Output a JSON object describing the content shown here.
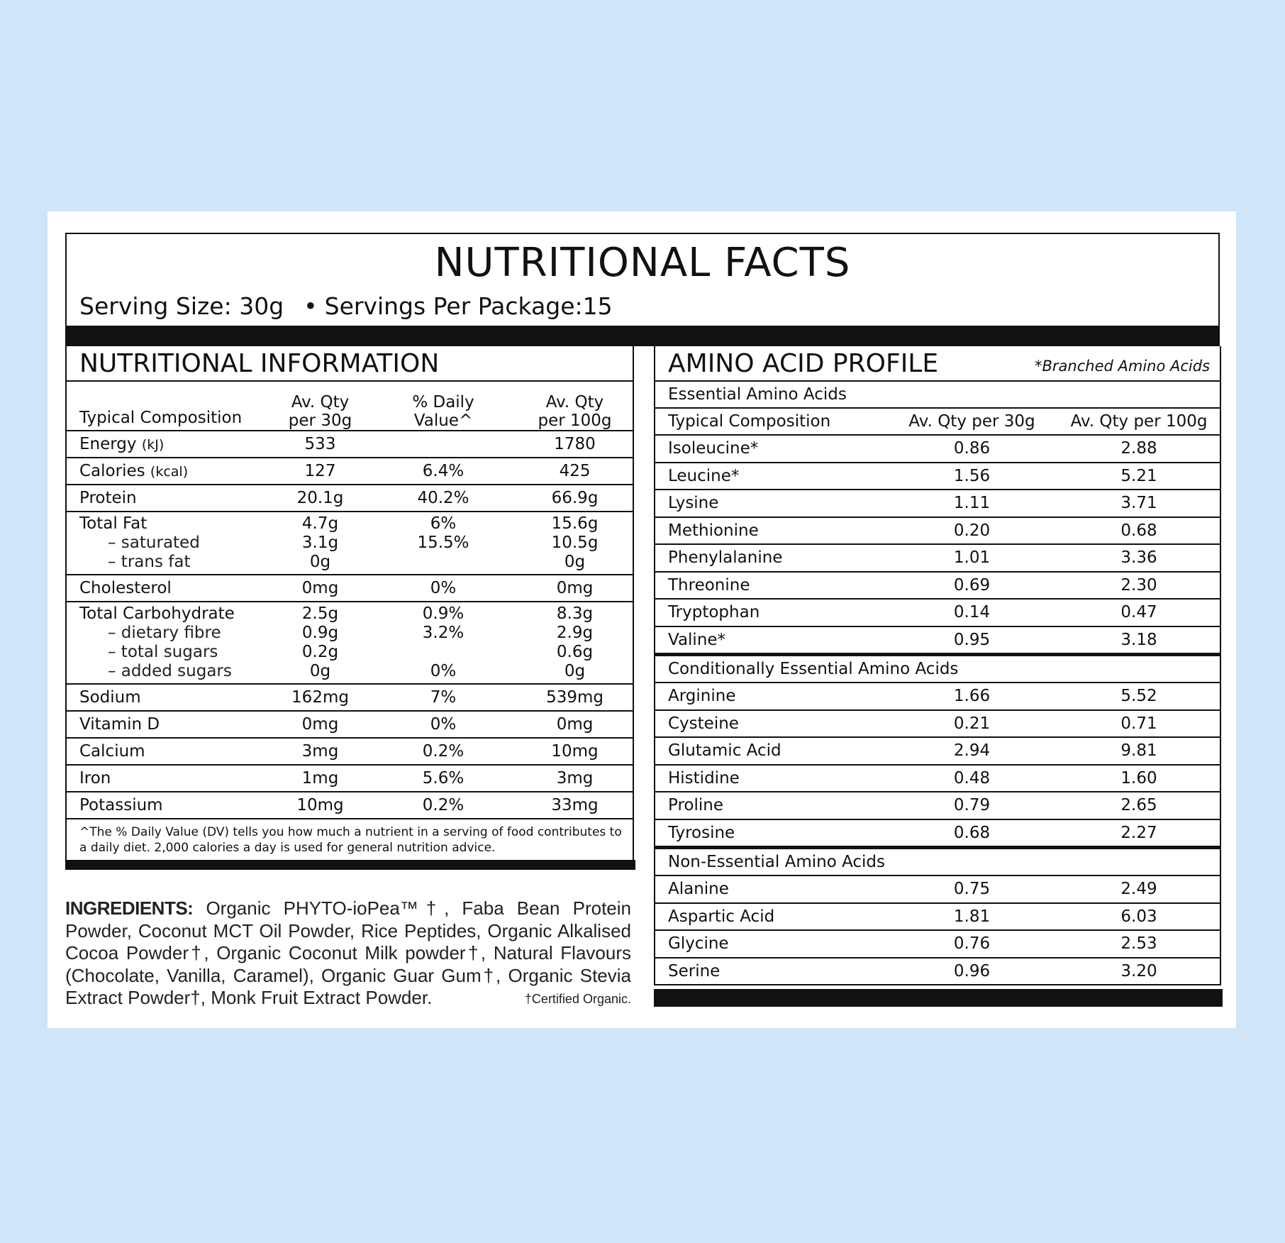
{
  "header": {
    "title": "NUTRITIONAL FACTS",
    "serving_size": "Serving Size: 30g",
    "servings_per_package": "Servings Per Package:15"
  },
  "nutrition": {
    "title": "NUTRITIONAL INFORMATION",
    "columns": [
      "Typical Composition",
      "Av. Qty\nper 30g",
      "% Daily\nValue^",
      "Av. Qty\nper 100g"
    ],
    "groups": [
      {
        "rows": [
          {
            "name": "Energy",
            "unit": "(kJ)",
            "per_serving": "533",
            "daily_value": null,
            "per_100g": "1780"
          }
        ]
      },
      {
        "rows": [
          {
            "name": "Calories",
            "unit": "(kcal)",
            "per_serving": "127",
            "daily_value": "6.4%",
            "per_100g": "425"
          }
        ]
      },
      {
        "rows": [
          {
            "name": "Protein",
            "per_serving": "20.1g",
            "daily_value": "40.2%",
            "per_100g": "66.9g"
          }
        ]
      },
      {
        "rows": [
          {
            "name": "Total Fat",
            "per_serving": "4.7g",
            "daily_value": "6%",
            "per_100g": "15.6g"
          },
          {
            "name": "– saturated",
            "per_serving": "3.1g",
            "daily_value": "15.5%",
            "per_100g": "10.5g"
          },
          {
            "name": "– trans fat",
            "per_serving": "0g",
            "daily_value": null,
            "per_100g": "0g"
          }
        ]
      },
      {
        "rows": [
          {
            "name": "Cholesterol",
            "per_serving": "0mg",
            "daily_value": "0%",
            "per_100g": "0mg"
          }
        ]
      },
      {
        "rows": [
          {
            "name": "Total Carbohydrate",
            "per_serving": "2.5g",
            "daily_value": "0.9%",
            "per_100g": "8.3g"
          },
          {
            "name": "– dietary fibre",
            "per_serving": "0.9g",
            "daily_value": "3.2%",
            "per_100g": "2.9g"
          },
          {
            "name": "– total sugars",
            "per_serving": "0.2g",
            "daily_value": null,
            "per_100g": "0.6g"
          },
          {
            "name": "– added sugars",
            "per_serving": "0g",
            "daily_value": "0%",
            "per_100g": "0g"
          }
        ]
      },
      {
        "rows": [
          {
            "name": "Sodium",
            "per_serving": "162mg",
            "daily_value": "7%",
            "per_100g": "539mg"
          }
        ]
      },
      {
        "rows": [
          {
            "name": "Vitamin D",
            "per_serving": "0mg",
            "daily_value": "0%",
            "per_100g": "0mg"
          }
        ]
      },
      {
        "rows": [
          {
            "name": "Calcium",
            "per_serving": "3mg",
            "daily_value": "0.2%",
            "per_100g": "10mg"
          }
        ]
      },
      {
        "rows": [
          {
            "name": "Iron",
            "per_serving": "1mg",
            "daily_value": "5.6%",
            "per_100g": "3mg"
          }
        ]
      },
      {
        "rows": [
          {
            "name": "Potassium",
            "per_serving": "10mg",
            "daily_value": "0.2%",
            "per_100g": "33mg"
          }
        ]
      }
    ],
    "footnote": "^The % Daily Value (DV) tells you how much a nutrient in a serving of food contributes to a daily diet. 2,000 calories a day is used for general nutrition advice."
  },
  "ingredients": {
    "label": "INGREDIENTS:",
    "text": "Organic PHYTO-ioPea™†, Faba Bean Protein Powder, Coconut MCT Oil Powder, Rice Peptides, Organic Alkalised Cocoa Powder†, Organic Coconut Milk powder†, Natural Flavours (Chocolate, Vanilla, Caramel), Organic Guar Gum†, Organic Stevia Extract Powder†, Monk Fruit Extract Powder.",
    "note": "†Certified Organic."
  },
  "amino": {
    "title": "AMINO ACID PROFILE",
    "note": "*Branched Amino Acids",
    "columns": [
      "Typical Composition",
      "Av. Qty per 30g",
      "Av. Qty per 100g"
    ],
    "sections": [
      {
        "title": "Essential Amino Acids",
        "rows": [
          [
            "Isoleucine*",
            "0.86",
            "2.88"
          ],
          [
            "Leucine*",
            "1.56",
            "5.21"
          ],
          [
            "Lysine",
            "1.11",
            "3.71"
          ],
          [
            "Methionine",
            "0.20",
            "0.68"
          ],
          [
            "Phenylalanine",
            "1.01",
            "3.36"
          ],
          [
            "Threonine",
            "0.69",
            "2.30"
          ],
          [
            "Tryptophan",
            "0.14",
            "0.47"
          ],
          [
            "Valine*",
            "0.95",
            "3.18"
          ]
        ]
      },
      {
        "title": "Conditionally Essential Amino Acids",
        "rows": [
          [
            "Arginine",
            "1.66",
            "5.52"
          ],
          [
            "Cysteine",
            "0.21",
            "0.71"
          ],
          [
            "Glutamic Acid",
            "2.94",
            "9.81"
          ],
          [
            "Histidine",
            "0.48",
            "1.60"
          ],
          [
            "Proline",
            "0.79",
            "2.65"
          ],
          [
            "Tyrosine",
            "0.68",
            "2.27"
          ]
        ]
      },
      {
        "title": "Non-Essential Amino Acids",
        "rows": [
          [
            "Alanine",
            "0.75",
            "2.49"
          ],
          [
            "Aspartic Acid",
            "1.81",
            "6.03"
          ],
          [
            "Glycine",
            "0.76",
            "2.53"
          ],
          [
            "Serine",
            "0.96",
            "3.20"
          ]
        ]
      }
    ]
  }
}
